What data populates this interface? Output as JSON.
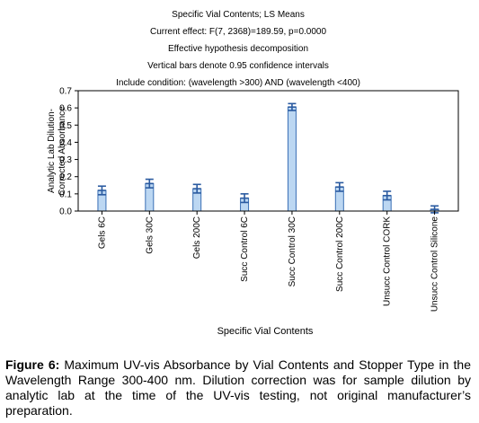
{
  "chart_data": {
    "type": "bar",
    "header_lines": [
      "Specific Vial Contents; LS Means",
      "Current effect: F(7, 2368)=189.59, p=0.0000",
      "Effective hypothesis decomposition",
      "Vertical bars denote 0.95 confidence intervals",
      "Include condition: (wavelength >300) AND  (wavelength <400)"
    ],
    "ylabel_lines": [
      "Analytic Lab Dilution-",
      "Corrected Absorbance"
    ],
    "xlabel": "Specific Vial Contents",
    "ylim": [
      0.0,
      0.7
    ],
    "yticks": [
      0.0,
      0.1,
      0.2,
      0.3,
      0.4,
      0.5,
      0.6,
      0.7
    ],
    "ytick_labels": [
      "0.0",
      "0.1",
      "0.2",
      "0.3",
      "0.4",
      "0.5",
      "0.6",
      "0.7"
    ],
    "grid": false,
    "categories": [
      "Gels 6C",
      "Gels 30C",
      "Gels 200C",
      "Succ Control 6C",
      "Succ Control 30C",
      "Succ Control 200C",
      "Unsucc Control CORK",
      "Unsucc Control Silicone"
    ],
    "values": [
      0.12,
      0.16,
      0.13,
      0.075,
      0.605,
      0.14,
      0.09,
      0.01
    ],
    "ci_lower": [
      0.095,
      0.135,
      0.105,
      0.05,
      0.585,
      0.115,
      0.065,
      -0.01
    ],
    "ci_upper": [
      0.145,
      0.185,
      0.155,
      0.1,
      0.625,
      0.165,
      0.115,
      0.03
    ],
    "colors": {
      "bar_fill": "#bcd7f2",
      "bar_stroke": "#3a6fb5",
      "error_bar": "#2a5aa0"
    }
  },
  "caption": {
    "label": "Figure 6:",
    "text": "Maximum UV-vis Absorbance by Vial Contents and Stopper Type in the Wavelength Range 300-400 nm.  Dilution correction was for sample dilution by analytic lab at the time of the UV-vis testing, not original manufacturer’s preparation."
  }
}
